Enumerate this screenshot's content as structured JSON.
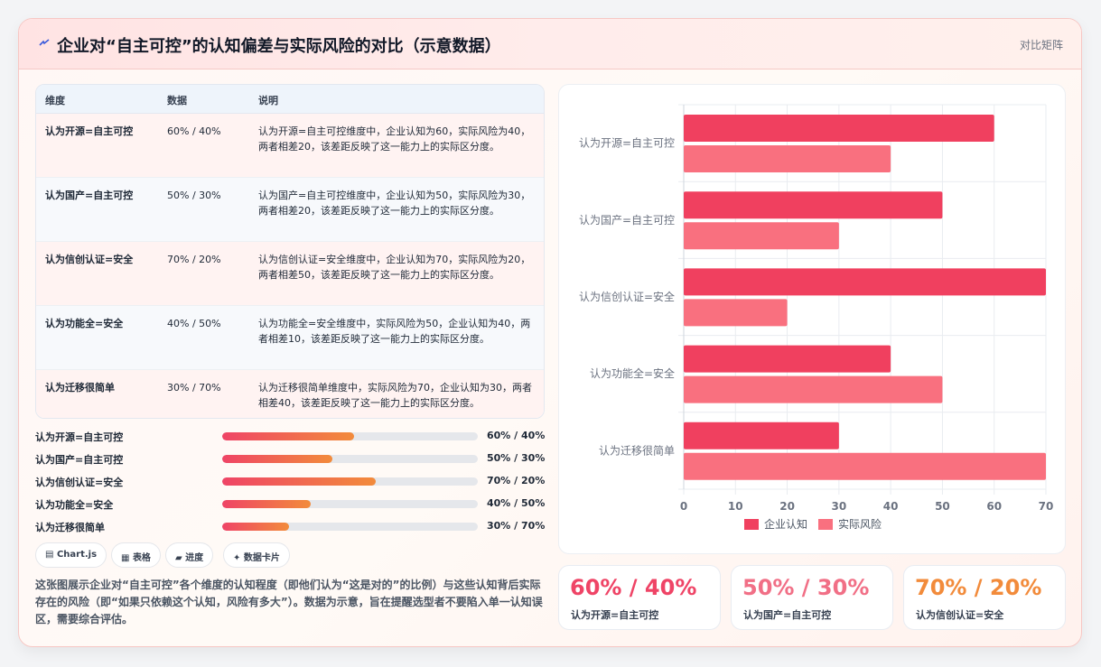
{
  "header": {
    "title": "企业对“自主可控”的认知偏差与实际风险的对比（示意数据）",
    "badge": "对比矩阵"
  },
  "table": {
    "columns": [
      "维度",
      "数据",
      "说明"
    ],
    "rows": [
      {
        "dim": "认为开源=自主可控",
        "data": "60% / 40%",
        "note": "认为开源=自主可控维度中，企业认知为60，实际风险为40，两者相差20，该差距反映了这一能力上的实际区分度。"
      },
      {
        "dim": "认为国产=自主可控",
        "data": "50% / 30%",
        "note": "认为国产=自主可控维度中，企业认知为50，实际风险为30，两者相差20，该差距反映了这一能力上的实际区分度。"
      },
      {
        "dim": "认为信创认证=安全",
        "data": "70% / 20%",
        "note": "认为信创认证=安全维度中，企业认知为70，实际风险为20，两者相差50，该差距反映了这一能力上的实际区分度。"
      },
      {
        "dim": "认为功能全=安全",
        "data": "40% / 50%",
        "note": "认为功能全=安全维度中，实际风险为50，企业认知为40，两者相差10，该差距反映了这一能力上的实际区分度。"
      },
      {
        "dim": "认为迁移很简单",
        "data": "30% / 70%",
        "note": "认为迁移很简单维度中，实际风险为70，企业认知为30，两者相差40，该差距反映了这一能力上的实际区分度。"
      }
    ]
  },
  "progress": [
    {
      "label": "认为开源=自主可控",
      "value": "60% / 40%",
      "fill": 0.515
    },
    {
      "label": "认为国产=自主可控",
      "value": "50% / 30%",
      "fill": 0.43
    },
    {
      "label": "认为信创认证=安全",
      "value": "70% / 20%",
      "fill": 0.6
    },
    {
      "label": "认为功能全=安全",
      "value": "40% / 50%",
      "fill": 0.345
    },
    {
      "label": "认为迁移很简单",
      "value": "30% / 70%",
      "fill": 0.26
    }
  ],
  "chips": [
    "Chart.js",
    "表格",
    "进度",
    "数据卡片"
  ],
  "description": "这张图展示企业对“自主可控”各个维度的认知程度（即他们认为“这是对的”的比例）与这些认知背后实际存在的风险（即“如果只依赖这个认知，风险有多大”）。数据为示意，旨在提醒选型者不要陷入单一认知误区，需要综合评估。",
  "stats": [
    {
      "value": "60% / 40%",
      "label": "认为开源=自主可控",
      "color": "#ef4466"
    },
    {
      "value": "50% / 30%",
      "label": "认为国产=自主可控",
      "color": "#f16f86"
    },
    {
      "value": "70% / 20%",
      "label": "认为信创认证=安全",
      "color": "#f28b3b"
    }
  ],
  "colors": {
    "cognition": "#f0405f",
    "risk": "#f9707f"
  },
  "chart_data": {
    "type": "bar",
    "orientation": "horizontal",
    "categories": [
      "认为开源=自主可控",
      "认为国产=自主可控",
      "认为信创认证=安全",
      "认为功能全=安全",
      "认为迁移很简单"
    ],
    "series": [
      {
        "name": "企业认知",
        "values": [
          60,
          50,
          70,
          40,
          30
        ]
      },
      {
        "name": "实际风险",
        "values": [
          40,
          30,
          20,
          50,
          70
        ]
      }
    ],
    "xlim": [
      0,
      70
    ],
    "xticks": [
      "0",
      "10",
      "20",
      "30",
      "40",
      "50",
      "60",
      "70"
    ],
    "grid": true,
    "legend": "bottom"
  }
}
